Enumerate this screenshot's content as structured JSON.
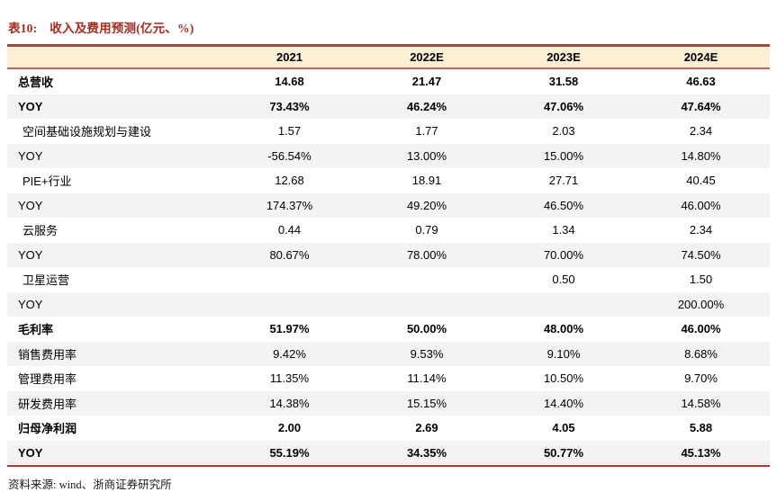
{
  "title": {
    "prefix": "表10:",
    "text": "收入及费用预测(亿元、%)"
  },
  "table": {
    "columns": [
      "2021",
      "2022E",
      "2023E",
      "2024E"
    ],
    "rows": [
      {
        "label": "总营收",
        "values": [
          "14.68",
          "21.47",
          "31.58",
          "46.63"
        ],
        "emphasis": true,
        "indent": false
      },
      {
        "label": "YOY",
        "values": [
          "73.43%",
          "46.24%",
          "47.06%",
          "47.64%"
        ],
        "emphasis": true,
        "indent": false
      },
      {
        "label": "空间基础设施规划与建设",
        "values": [
          "1.57",
          "1.77",
          "2.03",
          "2.34"
        ],
        "emphasis": false,
        "indent": true
      },
      {
        "label": "YOY",
        "values": [
          "-56.54%",
          "13.00%",
          "15.00%",
          "14.80%"
        ],
        "emphasis": false,
        "indent": false
      },
      {
        "label": "PIE+行业",
        "values": [
          "12.68",
          "18.91",
          "27.71",
          "40.45"
        ],
        "emphasis": false,
        "indent": true
      },
      {
        "label": "YOY",
        "values": [
          "174.37%",
          "49.20%",
          "46.50%",
          "46.00%"
        ],
        "emphasis": false,
        "indent": false
      },
      {
        "label": "云服务",
        "values": [
          "0.44",
          "0.79",
          "1.34",
          "2.34"
        ],
        "emphasis": false,
        "indent": true
      },
      {
        "label": "YOY",
        "values": [
          "80.67%",
          "78.00%",
          "70.00%",
          "74.50%"
        ],
        "emphasis": false,
        "indent": false
      },
      {
        "label": "卫星运营",
        "values": [
          "",
          "",
          "0.50",
          "1.50"
        ],
        "emphasis": false,
        "indent": true
      },
      {
        "label": "YOY",
        "values": [
          "",
          "",
          "",
          "200.00%"
        ],
        "emphasis": false,
        "indent": false
      },
      {
        "label": "毛利率",
        "values": [
          "51.97%",
          "50.00%",
          "48.00%",
          "46.00%"
        ],
        "emphasis": true,
        "indent": false
      },
      {
        "label": "销售费用率",
        "values": [
          "9.42%",
          "9.53%",
          "9.10%",
          "8.68%"
        ],
        "emphasis": false,
        "indent": false
      },
      {
        "label": "管理费用率",
        "values": [
          "11.35%",
          "11.14%",
          "10.50%",
          "9.70%"
        ],
        "emphasis": false,
        "indent": false
      },
      {
        "label": "研发费用率",
        "values": [
          "14.38%",
          "15.15%",
          "14.40%",
          "14.58%"
        ],
        "emphasis": false,
        "indent": false
      },
      {
        "label": "归母净利润",
        "values": [
          "2.00",
          "2.69",
          "4.05",
          "5.88"
        ],
        "emphasis": true,
        "indent": false
      },
      {
        "label": "YOY",
        "values": [
          "55.19%",
          "34.35%",
          "50.77%",
          "45.13%"
        ],
        "emphasis": true,
        "indent": false
      }
    ]
  },
  "source": "资料来源: wind、浙商证券研究所",
  "colors": {
    "title_red": "#A8291E",
    "header_background": "#FCEFD3",
    "header_border_top": "#9C4A42",
    "header_border_bottom": "#C2635B",
    "table_bottom_rule": "#B53A2C",
    "row_alt_background": "#F3F3F3",
    "text": "#000000"
  }
}
